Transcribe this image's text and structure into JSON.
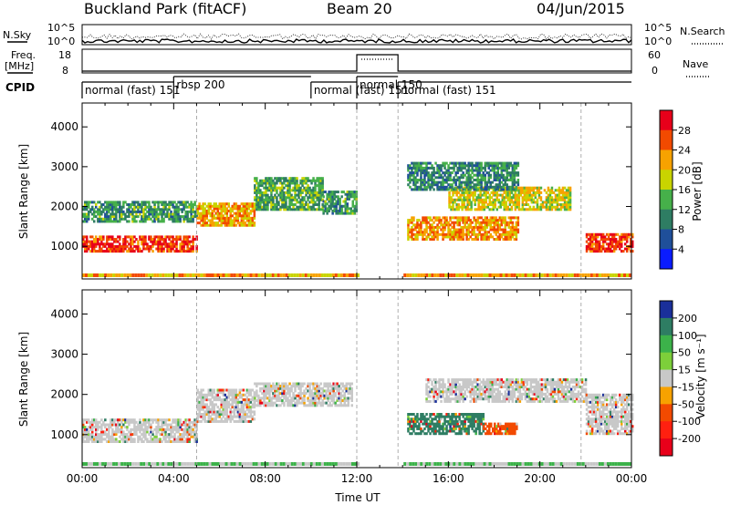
{
  "header": {
    "site": "Buckland Park (fitACF)",
    "beam": "Beam 20",
    "date": "04/Jun/2015"
  },
  "panels": {
    "nsky_label": "N.Sky",
    "nsearch_label": "N.Search",
    "noise_ticks": [
      "10^5",
      "10^0"
    ],
    "freq_label_1": "Freq.",
    "freq_label_2": "[MHz]",
    "freq_ticks": [
      "18",
      "8"
    ],
    "nave_label": "Nave",
    "nave_ticks": [
      "60",
      "0"
    ],
    "cpid_label": "CPID"
  },
  "cpid_segments": [
    {
      "start": 0,
      "end": 4.0,
      "label": "normal (fast) 151"
    },
    {
      "start": 4.0,
      "end": 10.0,
      "label": "rbsp 200"
    },
    {
      "start": 10.0,
      "end": 12.0,
      "label": "normal (fast) 151"
    },
    {
      "start": 12.0,
      "end": 13.8,
      "label": "normal 150"
    },
    {
      "start": 13.8,
      "end": 24.0,
      "label": "normal (fast) 151"
    }
  ],
  "chart_data": [
    {
      "type": "heatmap",
      "name": "power",
      "ylabel": "Slant Range [km]",
      "xlim": [
        0,
        24
      ],
      "ylim": [
        180,
        4600
      ],
      "yticks": [
        1000,
        2000,
        3000,
        4000
      ],
      "colorbar": {
        "label": "Power [dB]",
        "ticks": [
          "28",
          "24",
          "20",
          "16",
          "12",
          "8",
          "4"
        ],
        "colors": [
          "#e8001a",
          "#f24a00",
          "#f7a200",
          "#c9d400",
          "#46b04a",
          "#2e7d63",
          "#1f4f9a",
          "#0a1cff"
        ]
      },
      "bands": [
        {
          "start": 0,
          "end": 5.0,
          "from": 850,
          "to": 1250,
          "level": 0.9
        },
        {
          "start": 0,
          "end": 5.0,
          "from": 1600,
          "to": 2100,
          "level": 0.35
        },
        {
          "start": 5.0,
          "end": 7.5,
          "from": 1500,
          "to": 2100,
          "level": 0.7
        },
        {
          "start": 7.5,
          "end": 10.5,
          "from": 1900,
          "to": 2700,
          "level": 0.4
        },
        {
          "start": 10.5,
          "end": 12.0,
          "from": 1800,
          "to": 2400,
          "level": 0.35
        },
        {
          "start": 14.2,
          "end": 19.0,
          "from": 1150,
          "to": 1700,
          "level": 0.75
        },
        {
          "start": 16.0,
          "end": 21.3,
          "from": 1900,
          "to": 2500,
          "level": 0.6
        },
        {
          "start": 14.2,
          "end": 19.0,
          "from": 2400,
          "to": 3100,
          "level": 0.3
        },
        {
          "start": 22.0,
          "end": 24.0,
          "from": 850,
          "to": 1300,
          "level": 0.9
        }
      ]
    },
    {
      "type": "heatmap",
      "name": "velocity",
      "ylabel": "Slant Range [km]",
      "xlabel": "Time UT",
      "xlim": [
        0,
        24
      ],
      "ylim": [
        180,
        4600
      ],
      "xticks": [
        "00:00",
        "04:00",
        "08:00",
        "12:00",
        "16:00",
        "20:00",
        "00:00"
      ],
      "yticks": [
        1000,
        2000,
        3000,
        4000
      ],
      "colorbar": {
        "label": "Velocity [m s⁻¹]",
        "ticks": [
          "200",
          "100",
          "50",
          "15",
          "-15",
          "-50",
          "-100",
          "-200"
        ],
        "colors": [
          "#1a2f9a",
          "#2e7d63",
          "#3cb24a",
          "#7dcf3a",
          "#c8c8c8",
          "#f7a200",
          "#f24a00",
          "#ff2010",
          "#e8001a"
        ]
      },
      "bands": [
        {
          "start": 0,
          "end": 5.0,
          "from": 800,
          "to": 1350,
          "level": 0.5
        },
        {
          "start": 5.0,
          "end": 7.5,
          "from": 1300,
          "to": 2100,
          "level": 0.5
        },
        {
          "start": 7.5,
          "end": 11.8,
          "from": 1700,
          "to": 2300,
          "level": 0.5
        },
        {
          "start": 14.2,
          "end": 17.5,
          "from": 1000,
          "to": 1500,
          "level": 0.9
        },
        {
          "start": 17.5,
          "end": 19.0,
          "from": 1000,
          "to": 1300,
          "level": 0.2
        },
        {
          "start": 15.0,
          "end": 22.0,
          "from": 1800,
          "to": 2400,
          "level": 0.5
        },
        {
          "start": 22.0,
          "end": 24.0,
          "from": 1000,
          "to": 2000,
          "level": 0.5
        }
      ]
    }
  ]
}
